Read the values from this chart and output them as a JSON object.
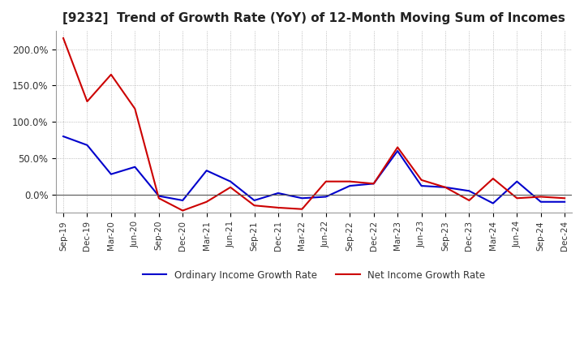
{
  "title": "[9232]  Trend of Growth Rate (YoY) of 12-Month Moving Sum of Incomes",
  "title_fontsize": 11,
  "ylim": [
    -25,
    225
  ],
  "yticks": [
    0.0,
    50.0,
    100.0,
    150.0,
    200.0
  ],
  "ytick_labels": [
    "0.0%",
    "50.0%",
    "100.0%",
    "150.0%",
    "200.0%"
  ],
  "background_color": "#ffffff",
  "grid_color": "#aaaaaa",
  "ordinary_color": "#0000cc",
  "net_color": "#cc0000",
  "legend_ordinary": "Ordinary Income Growth Rate",
  "legend_net": "Net Income Growth Rate",
  "x_labels": [
    "Sep-19",
    "Dec-19",
    "Mar-20",
    "Jun-20",
    "Sep-20",
    "Dec-20",
    "Mar-21",
    "Jun-21",
    "Sep-21",
    "Dec-21",
    "Mar-22",
    "Jun-22",
    "Sep-22",
    "Dec-22",
    "Mar-23",
    "Jun-23",
    "Sep-23",
    "Dec-23",
    "Mar-24",
    "Jun-24",
    "Sep-24",
    "Dec-24"
  ],
  "ordinary": [
    80,
    68,
    28,
    38,
    -2,
    -8,
    33,
    18,
    -8,
    2,
    -5,
    -3,
    12,
    15,
    60,
    12,
    10,
    5,
    -12,
    18,
    -10,
    -10
  ],
  "net": [
    215,
    128,
    165,
    118,
    -5,
    -22,
    -10,
    10,
    -15,
    -18,
    -20,
    18,
    18,
    15,
    65,
    20,
    10,
    -8,
    22,
    -5,
    -3,
    -5
  ]
}
